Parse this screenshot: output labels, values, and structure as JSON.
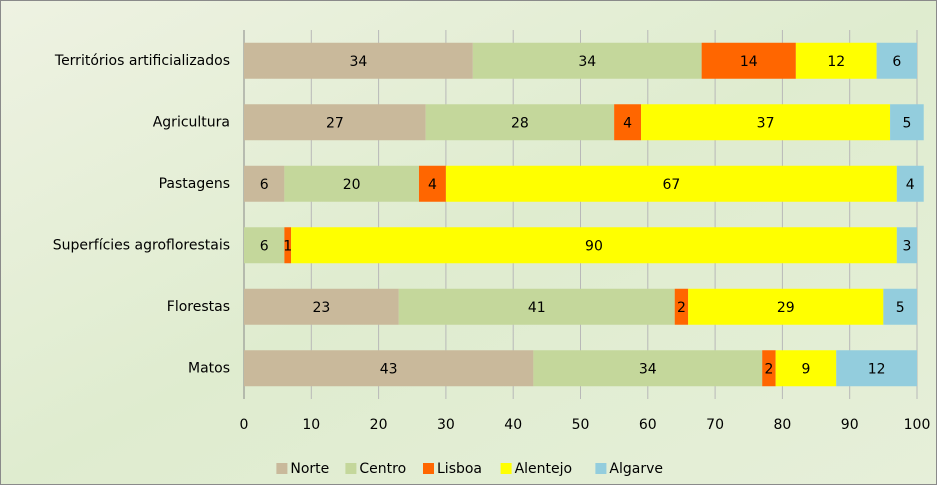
{
  "chart_data": {
    "type": "stacked_barh",
    "categories": [
      "Territórios artificializados",
      "Agricultura",
      "Pastagens",
      "Superfícies agroflorestais",
      "Florestas",
      "Matos"
    ],
    "series": [
      {
        "name": "Norte",
        "color": "#c9b99b",
        "values": [
          34,
          27,
          6,
          null,
          23,
          43
        ]
      },
      {
        "name": "Centro",
        "color": "#c4d79b",
        "values": [
          34,
          28,
          20,
          6,
          41,
          34
        ]
      },
      {
        "name": "Lisboa",
        "color": "#ff6600",
        "values": [
          14,
          4,
          4,
          1,
          2,
          2
        ]
      },
      {
        "name": "Alentejo",
        "color": "#ffff00",
        "values": [
          12,
          37,
          67,
          90,
          29,
          9
        ]
      },
      {
        "name": "Algarve",
        "color": "#93cddd",
        "values": [
          6,
          5,
          4,
          3,
          5,
          12
        ]
      }
    ],
    "xlim": [
      0,
      100
    ],
    "xticks": [
      0,
      10,
      20,
      30,
      40,
      50,
      60,
      70,
      80,
      90,
      100
    ],
    "grid": true,
    "legend": "bottom"
  }
}
